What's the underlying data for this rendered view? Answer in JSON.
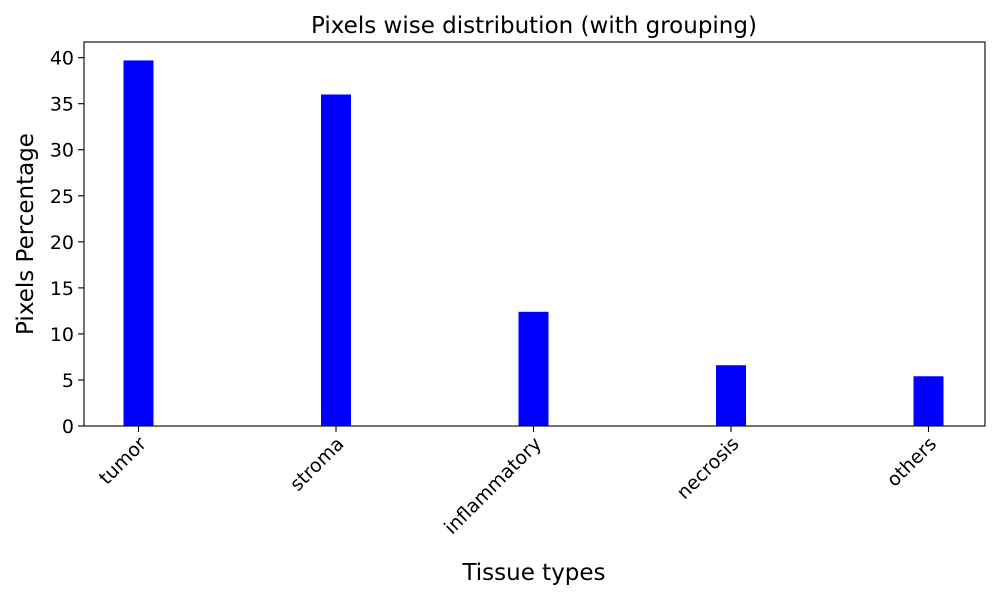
{
  "chart_data": {
    "type": "bar",
    "title": "Pixels wise distribution (with grouping)",
    "xlabel": "Tissue types",
    "ylabel": "Pixels Percentage",
    "categories": [
      "tumor",
      "stroma",
      "inflammatory",
      "necrosis",
      "others"
    ],
    "values": [
      39.7,
      36.0,
      12.4,
      6.6,
      5.4
    ],
    "yticks": [
      0,
      5,
      10,
      15,
      20,
      25,
      30,
      35,
      40
    ],
    "ylim": [
      0,
      41.7
    ],
    "grid": false,
    "bar_color": "#0000ff"
  }
}
